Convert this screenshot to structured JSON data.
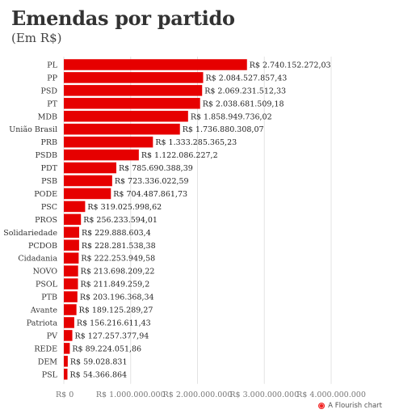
{
  "title": "Emendas por partido",
  "subtitle": "(Em R$)",
  "footer": {
    "text": "A Flourish chart"
  },
  "colors": {
    "bar": "#e60000",
    "grid": "#e3e3e3",
    "axis": "#999999"
  },
  "chart_data": {
    "type": "bar",
    "orientation": "horizontal",
    "title": "Emendas por partido",
    "subtitle": "(Em R$)",
    "categories": [
      "PL",
      "PP",
      "PSD",
      "PT",
      "MDB",
      "União Brasil",
      "PRB",
      "PSDB",
      "PDT",
      "PSB",
      "PODE",
      "PSC",
      "PROS",
      "Solidariedade",
      "PCDOB",
      "Cidadania",
      "NOVO",
      "PSOL",
      "PTB",
      "Avante",
      "Patriota",
      "PV",
      "REDE",
      "DEM",
      "PSL"
    ],
    "values": [
      2740152272.03,
      2084527857.43,
      2069231512.33,
      2038681509.18,
      1858949736.02,
      1736880308.07,
      1333285365.23,
      1122086227.2,
      785690388.39,
      723336022.59,
      704487861.73,
      319025998.62,
      256233594.01,
      229888603.4,
      228281538.38,
      222253949.58,
      213698209.22,
      211849259.2,
      203196368.34,
      189125289.27,
      156216611.43,
      127257377.94,
      89224051.86,
      59028831,
      54366864
    ],
    "value_labels": [
      "R$ 2.740.152.272,03",
      "R$ 2.084.527.857,43",
      "R$ 2.069.231.512,33",
      "R$ 2.038.681.509,18",
      "R$ 1.858.949.736,02",
      "R$ 1.736.880.308,07",
      "R$ 1.333.285.365,23",
      "R$ 1.122.086.227,2",
      "R$ 785.690.388,39",
      "R$ 723.336.022,59",
      "R$ 704.487.861,73",
      "R$ 319.025.998,62",
      "R$ 256.233.594,01",
      "R$ 229.888.603,4",
      "R$ 228.281.538,38",
      "R$ 222.253.949,58",
      "R$ 213.698.209,22",
      "R$ 211.849.259,2",
      "R$ 203.196.368,34",
      "R$ 189.125.289,27",
      "R$ 156.216.611,43",
      "R$ 127.257.377,94",
      "R$ 89.224.051,86",
      "R$ 59.028.831",
      "R$ 54.366.864"
    ],
    "xlim": [
      0,
      4000000000
    ],
    "x_ticks": [
      0,
      1000000000,
      2000000000,
      3000000000,
      4000000000
    ],
    "x_tick_labels": [
      "R$ 0",
      "R$ 1.000.000.000",
      "R$ 2.000.000.000",
      "R$ 3.000.000.000",
      "R$ 4.000.000.000"
    ],
    "grid": true,
    "legend": false
  }
}
